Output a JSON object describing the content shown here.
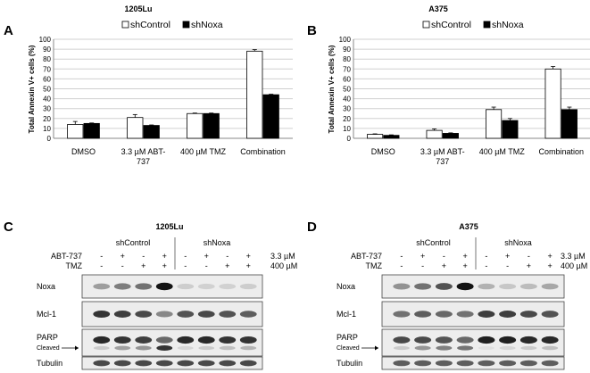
{
  "chart_data": [
    {
      "type": "bar",
      "panel": "A",
      "title": "1205Lu",
      "ylabel": "Total Annexin V+ cells (%)",
      "ylim": [
        0,
        100
      ],
      "yticks": [
        "0",
        "10",
        "20",
        "30",
        "40",
        "50",
        "60",
        "70",
        "80",
        "90",
        "100"
      ],
      "categories": [
        "DMSO",
        "3.3 µM ABT-|737",
        "400 µM TMZ",
        "Combination"
      ],
      "series": [
        {
          "name": "shControl",
          "color": "#ffffff",
          "values": [
            14,
            21,
            25,
            88
          ],
          "errors": [
            3,
            3,
            0.5,
            1.5
          ]
        },
        {
          "name": "shNoxa",
          "color": "#000000",
          "values": [
            15,
            13,
            25,
            44
          ],
          "errors": [
            0.5,
            0.5,
            0.5,
            0.5
          ]
        }
      ],
      "grid": "horizontal",
      "legend": "top"
    },
    {
      "type": "bar",
      "panel": "B",
      "title": "A375",
      "ylabel": "Total Annexin V+ cells (%)",
      "ylim": [
        0,
        100
      ],
      "yticks": [
        "0",
        "10",
        "20",
        "30",
        "40",
        "50",
        "60",
        "70",
        "80",
        "90",
        "100"
      ],
      "categories": [
        "DMSO",
        "3.3 µM ABT-|737",
        "400 µM TMZ",
        "Combination"
      ],
      "series": [
        {
          "name": "shControl",
          "color": "#ffffff",
          "values": [
            4,
            8,
            29,
            70
          ],
          "errors": [
            0.5,
            1.5,
            2.5,
            2.5
          ]
        },
        {
          "name": "shNoxa",
          "color": "#000000",
          "values": [
            3,
            5,
            18,
            29
          ],
          "errors": [
            0.5,
            0.5,
            2,
            2.5
          ]
        }
      ],
      "grid": "horizontal",
      "legend": "top"
    }
  ],
  "blots": [
    {
      "panel": "C",
      "title": "1205Lu",
      "groups": [
        "shControl",
        "shNoxa"
      ],
      "treatments": [
        {
          "label": "ABT-737",
          "signs": [
            "-",
            "+",
            "-",
            "+",
            "-",
            "+",
            "-",
            "+"
          ],
          "dose": "3.3 µM"
        },
        {
          "label": "TMZ",
          "signs": [
            "-",
            "-",
            "+",
            "+",
            "-",
            "-",
            "+",
            "+"
          ],
          "dose": "400 µM"
        }
      ],
      "rows": [
        {
          "label": "Noxa",
          "intensity": [
            0.35,
            0.5,
            0.55,
            1.0,
            0.12,
            0.1,
            0.1,
            0.12
          ]
        },
        {
          "label": "Mcl-1",
          "intensity": [
            0.85,
            0.8,
            0.75,
            0.45,
            0.7,
            0.75,
            0.7,
            0.65
          ]
        },
        {
          "label": "PARP",
          "sublabel": "Cleaved",
          "intensity": [
            0.9,
            0.85,
            0.8,
            0.6,
            0.9,
            0.9,
            0.85,
            0.85
          ],
          "cleaved": [
            0.15,
            0.35,
            0.4,
            0.85,
            0.1,
            0.15,
            0.2,
            0.25
          ]
        },
        {
          "label": "Tubulin",
          "intensity": [
            0.75,
            0.75,
            0.75,
            0.75,
            0.75,
            0.75,
            0.75,
            0.75
          ]
        }
      ]
    },
    {
      "panel": "D",
      "title": "A375",
      "groups": [
        "shControl",
        "shNoxa"
      ],
      "treatments": [
        {
          "label": "ABT-737",
          "signs": [
            "-",
            "+",
            "-",
            "+",
            "-",
            "+",
            "-",
            "+"
          ],
          "dose": "3.3 µM"
        },
        {
          "label": "TMZ",
          "signs": [
            "-",
            "-",
            "+",
            "+",
            "-",
            "-",
            "+",
            "+"
          ],
          "dose": "400 µM"
        }
      ],
      "rows": [
        {
          "label": "Noxa",
          "intensity": [
            0.4,
            0.55,
            0.7,
            1.0,
            0.25,
            0.15,
            0.2,
            0.3
          ]
        },
        {
          "label": "Mcl-1",
          "intensity": [
            0.55,
            0.65,
            0.6,
            0.55,
            0.8,
            0.8,
            0.75,
            0.7
          ]
        },
        {
          "label": "PARP",
          "sublabel": "Cleaved",
          "intensity": [
            0.75,
            0.75,
            0.7,
            0.6,
            0.95,
            0.95,
            0.9,
            0.9
          ],
          "cleaved": [
            0.15,
            0.4,
            0.5,
            0.55,
            0.05,
            0.1,
            0.15,
            0.2
          ]
        },
        {
          "label": "Tubulin",
          "intensity": [
            0.65,
            0.65,
            0.65,
            0.65,
            0.65,
            0.65,
            0.65,
            0.65
          ]
        }
      ]
    }
  ]
}
